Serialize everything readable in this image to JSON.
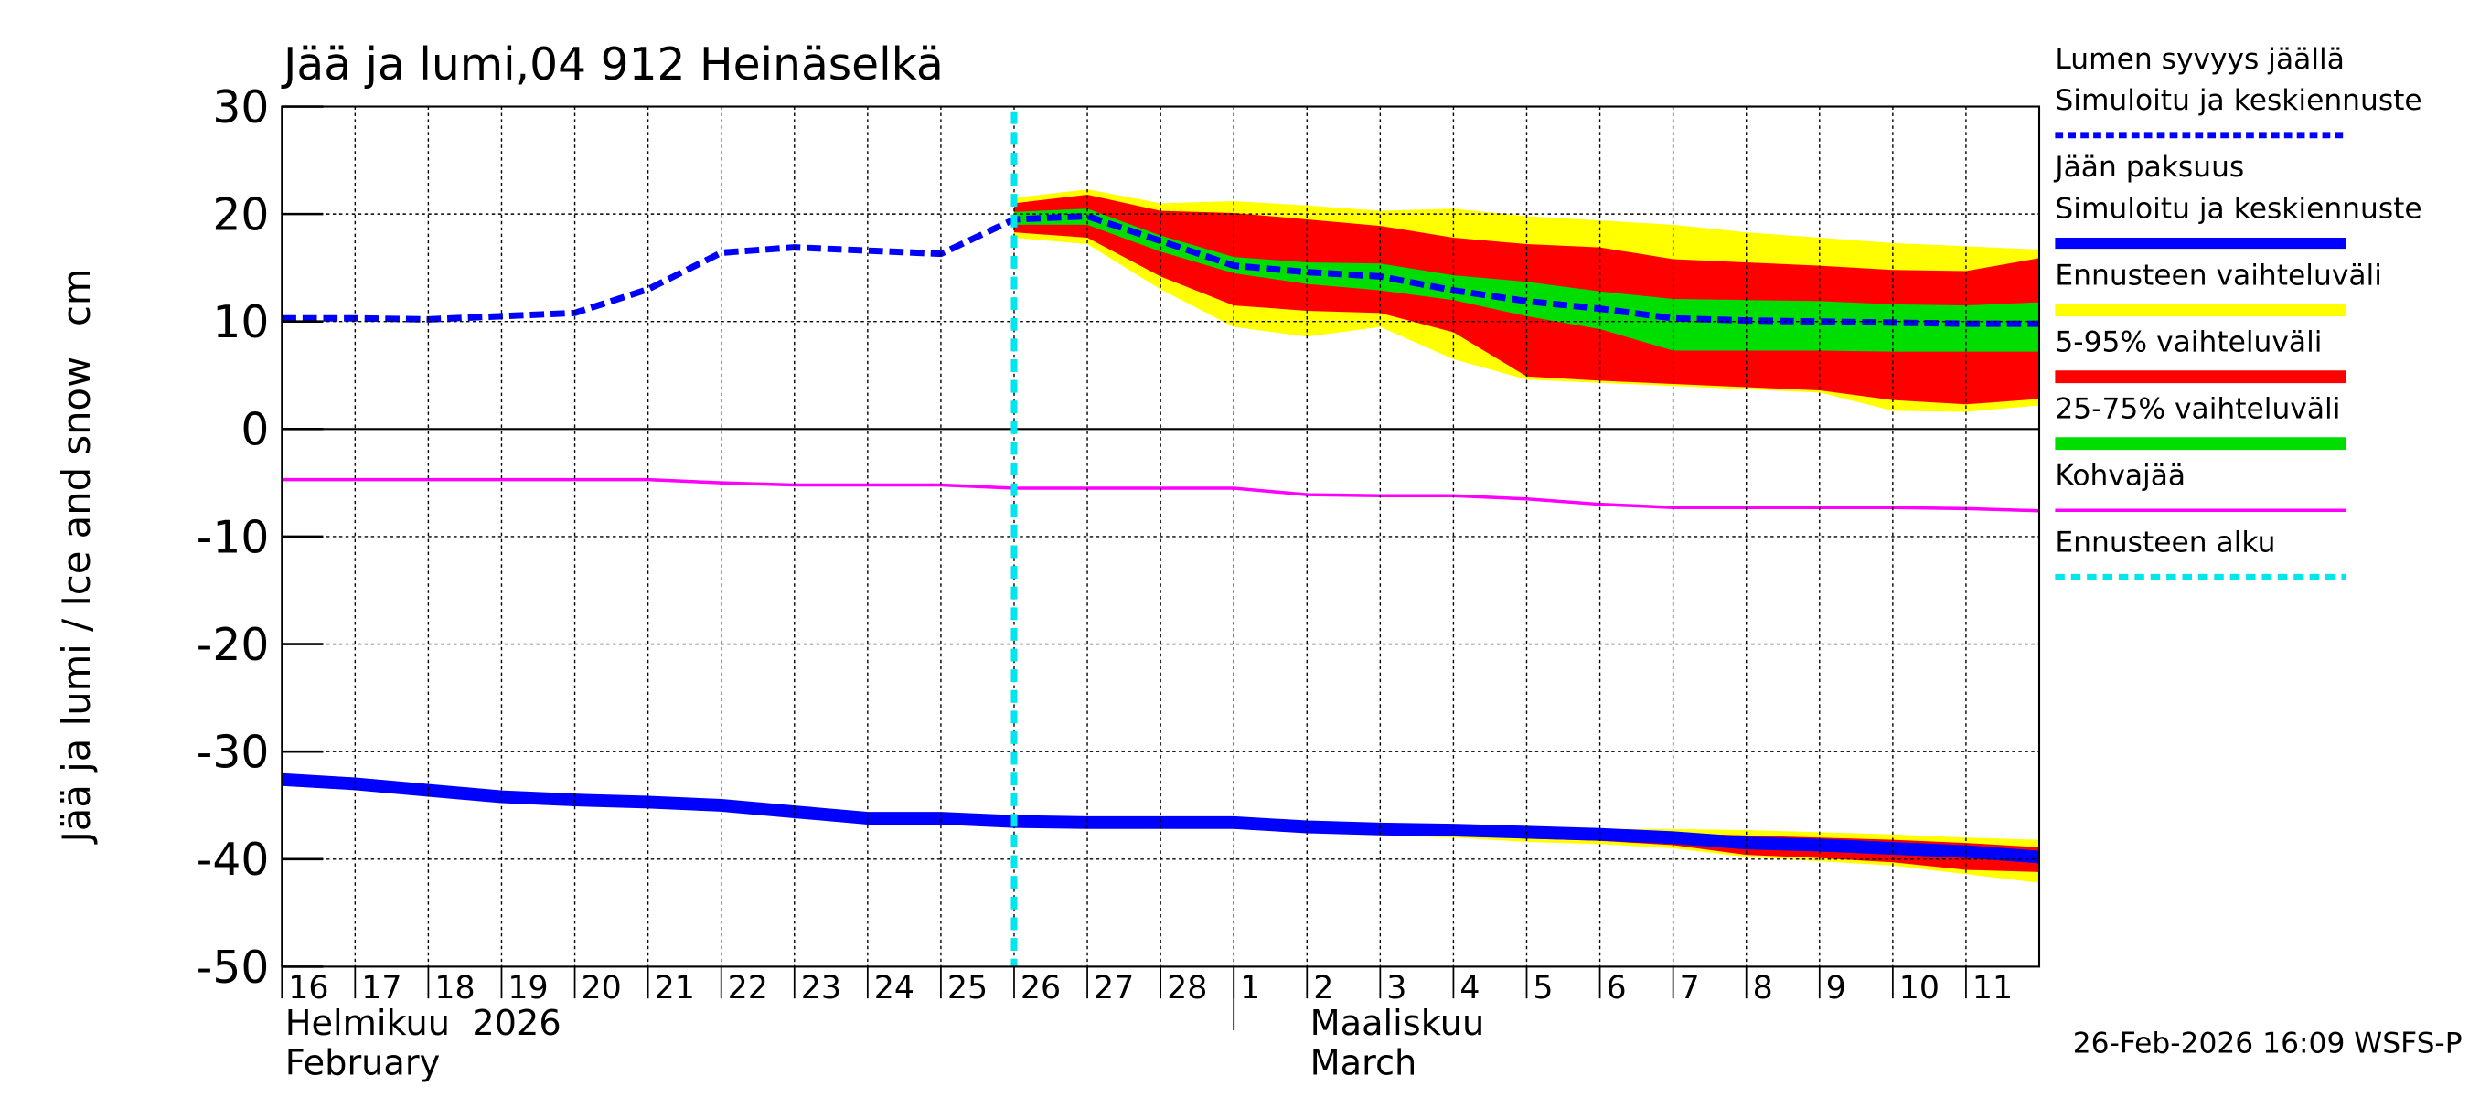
{
  "chart_data": {
    "type": "line",
    "title": "Jää ja lumi,04 912 Heinäselkä",
    "ylabel": "Jää ja lumi / Ice and snow",
    "yunit": "cm",
    "x": [
      "2026-02-16",
      "2026-02-17",
      "2026-02-18",
      "2026-02-19",
      "2026-02-20",
      "2026-02-21",
      "2026-02-22",
      "2026-02-23",
      "2026-02-24",
      "2026-02-25",
      "2026-02-26",
      "2026-02-27",
      "2026-02-28",
      "2026-03-01",
      "2026-03-02",
      "2026-03-03",
      "2026-03-04",
      "2026-03-05",
      "2026-03-06",
      "2026-03-07",
      "2026-03-08",
      "2026-03-09",
      "2026-03-10",
      "2026-03-11",
      "2026-03-12"
    ],
    "xlim": [
      "2026-02-16",
      "2026-03-12"
    ],
    "xticks": [
      {
        "value": "2026-02-16",
        "label": "16"
      },
      {
        "value": "2026-02-17",
        "label": "17"
      },
      {
        "value": "2026-02-18",
        "label": "18"
      },
      {
        "value": "2026-02-19",
        "label": "19"
      },
      {
        "value": "2026-02-20",
        "label": "20"
      },
      {
        "value": "2026-02-21",
        "label": "21"
      },
      {
        "value": "2026-02-22",
        "label": "22"
      },
      {
        "value": "2026-02-23",
        "label": "23"
      },
      {
        "value": "2026-02-24",
        "label": "24"
      },
      {
        "value": "2026-02-25",
        "label": "25"
      },
      {
        "value": "2026-02-26",
        "label": "26"
      },
      {
        "value": "2026-02-27",
        "label": "27"
      },
      {
        "value": "2026-02-28",
        "label": "28"
      },
      {
        "value": "2026-03-01",
        "label": "1"
      },
      {
        "value": "2026-03-02",
        "label": "2"
      },
      {
        "value": "2026-03-03",
        "label": "3"
      },
      {
        "value": "2026-03-04",
        "label": "4"
      },
      {
        "value": "2026-03-05",
        "label": "5"
      },
      {
        "value": "2026-03-06",
        "label": "6"
      },
      {
        "value": "2026-03-07",
        "label": "7"
      },
      {
        "value": "2026-03-08",
        "label": "8"
      },
      {
        "value": "2026-03-09",
        "label": "9"
      },
      {
        "value": "2026-03-10",
        "label": "10"
      },
      {
        "value": "2026-03-11",
        "label": "11"
      }
    ],
    "months": [
      {
        "value": "2026-02-16",
        "label": "Helmikuu  2026",
        "label2": "February"
      },
      {
        "value": "2026-03-01",
        "label": "Maaliskuu",
        "label2": "March"
      }
    ],
    "ylim": [
      -50,
      30
    ],
    "yticks": [
      -50,
      -40,
      -30,
      -20,
      -10,
      0,
      10,
      20,
      30
    ],
    "grid": true,
    "series": [
      {
        "name": "Lumen syvyys jäällä",
        "subname": "Simuloitu ja keskiennuste",
        "color": "#0000ff",
        "style": "dashed",
        "values": [
          10.3,
          10.3,
          10.2,
          10.5,
          10.8,
          13,
          16.4,
          16.9,
          16.6,
          16.3,
          19.5,
          19.8,
          17.5,
          15.2,
          14.6,
          14.2,
          12.9,
          11.9,
          11.2,
          10.3,
          10.1,
          10.0,
          9.9,
          9.8,
          9.8
        ]
      },
      {
        "name": "Jään paksuus",
        "subname": "Simuloitu ja keskiennuste",
        "color": "#0000ff",
        "style": "thick",
        "values": [
          -32.6,
          -33,
          -33.6,
          -34.2,
          -34.5,
          -34.7,
          -35,
          -35.6,
          -36.2,
          -36.2,
          -36.5,
          -36.6,
          -36.6,
          -36.6,
          -37,
          -37.2,
          -37.3,
          -37.5,
          -37.7,
          -38,
          -38.5,
          -38.7,
          -39,
          -39.3,
          -39.8
        ]
      },
      {
        "name": "Kohvajää",
        "color": "#ff00ff",
        "style": "thin",
        "values": [
          -4.7,
          -4.7,
          -4.7,
          -4.7,
          -4.7,
          -4.7,
          -5,
          -5.2,
          -5.2,
          -5.2,
          -5.5,
          -5.5,
          -5.5,
          -5.5,
          -6.1,
          -6.2,
          -6.2,
          -6.5,
          -7,
          -7.3,
          -7.3,
          -7.3,
          -7.3,
          -7.4,
          -7.6
        ]
      }
    ],
    "bands": [
      {
        "name": "Ennusteen vaihteluväli",
        "color": "#ffff00",
        "snow_high": [
          null,
          null,
          null,
          null,
          null,
          null,
          null,
          null,
          null,
          null,
          21.5,
          22.3,
          21,
          21.2,
          20.8,
          20.3,
          20.5,
          19.8,
          19.4,
          19,
          18.3,
          17.8,
          17.3,
          17,
          16.7
        ],
        "snow_low": [
          null,
          null,
          null,
          null,
          null,
          null,
          null,
          null,
          null,
          null,
          17.8,
          17.2,
          13,
          9.5,
          8.6,
          9.5,
          6.5,
          4.6,
          4.3,
          4,
          3.7,
          3.4,
          1.7,
          1.6,
          2.2
        ],
        "ice_high": [
          null,
          null,
          null,
          null,
          null,
          null,
          null,
          null,
          null,
          null,
          null,
          null,
          null,
          -36.6,
          -37,
          -37.1,
          -37.1,
          -37.1,
          -37.2,
          -37.2,
          -37.3,
          -37.5,
          -37.7,
          -38,
          -38.2
        ],
        "ice_low": [
          null,
          null,
          null,
          null,
          null,
          null,
          null,
          null,
          null,
          null,
          null,
          null,
          null,
          -36.6,
          -37.5,
          -37.8,
          -38,
          -38.4,
          -38.6,
          -39,
          -39.8,
          -40.2,
          -40.6,
          -41.4,
          -42.2
        ]
      },
      {
        "name": "5-95% vaihteluväli",
        "color": "#ff0000",
        "snow_high": [
          null,
          null,
          null,
          null,
          null,
          null,
          null,
          null,
          null,
          null,
          21,
          21.8,
          20.3,
          20.1,
          19.5,
          18.9,
          17.8,
          17.2,
          16.9,
          15.8,
          15.5,
          15.2,
          14.8,
          14.7,
          15.9
        ],
        "snow_low": [
          null,
          null,
          null,
          null,
          null,
          null,
          null,
          null,
          null,
          null,
          18.3,
          17.8,
          14.2,
          11.5,
          11,
          10.8,
          9,
          4.9,
          4.5,
          4.2,
          3.9,
          3.6,
          2.7,
          2.3,
          2.8
        ],
        "ice_high": [
          null,
          null,
          null,
          null,
          null,
          null,
          null,
          null,
          null,
          null,
          null,
          null,
          null,
          -36.6,
          -37.2,
          -37.3,
          -37.3,
          -37.4,
          -37.5,
          -37.6,
          -37.8,
          -38,
          -38.2,
          -38.5,
          -38.9
        ],
        "ice_low": [
          null,
          null,
          null,
          null,
          null,
          null,
          null,
          null,
          null,
          null,
          null,
          null,
          null,
          -36.6,
          -37.4,
          -37.6,
          -37.8,
          -38.1,
          -38.3,
          -38.7,
          -39.6,
          -39.9,
          -40.3,
          -41,
          -41.2
        ]
      },
      {
        "name": "25-75% vaihteluväli",
        "color": "#00dd00",
        "snow_high": [
          null,
          null,
          null,
          null,
          null,
          null,
          null,
          null,
          null,
          null,
          20.2,
          20.5,
          18,
          16,
          15.5,
          15.4,
          14.3,
          13.7,
          12.8,
          12.1,
          12,
          11.9,
          11.6,
          11.5,
          11.8
        ],
        "snow_low": [
          null,
          null,
          null,
          null,
          null,
          null,
          null,
          null,
          null,
          null,
          19,
          19,
          16.5,
          14.5,
          13.5,
          12.9,
          12,
          10.5,
          9.3,
          7.3,
          7.3,
          7.3,
          7.2,
          7.2,
          7.2
        ]
      }
    ],
    "forecast_start": {
      "name": "Ennusteen alku",
      "color": "#00e5ee",
      "x": "2026-02-26"
    },
    "timestamp": "26-Feb-2026 16:09 WSFS-P"
  }
}
